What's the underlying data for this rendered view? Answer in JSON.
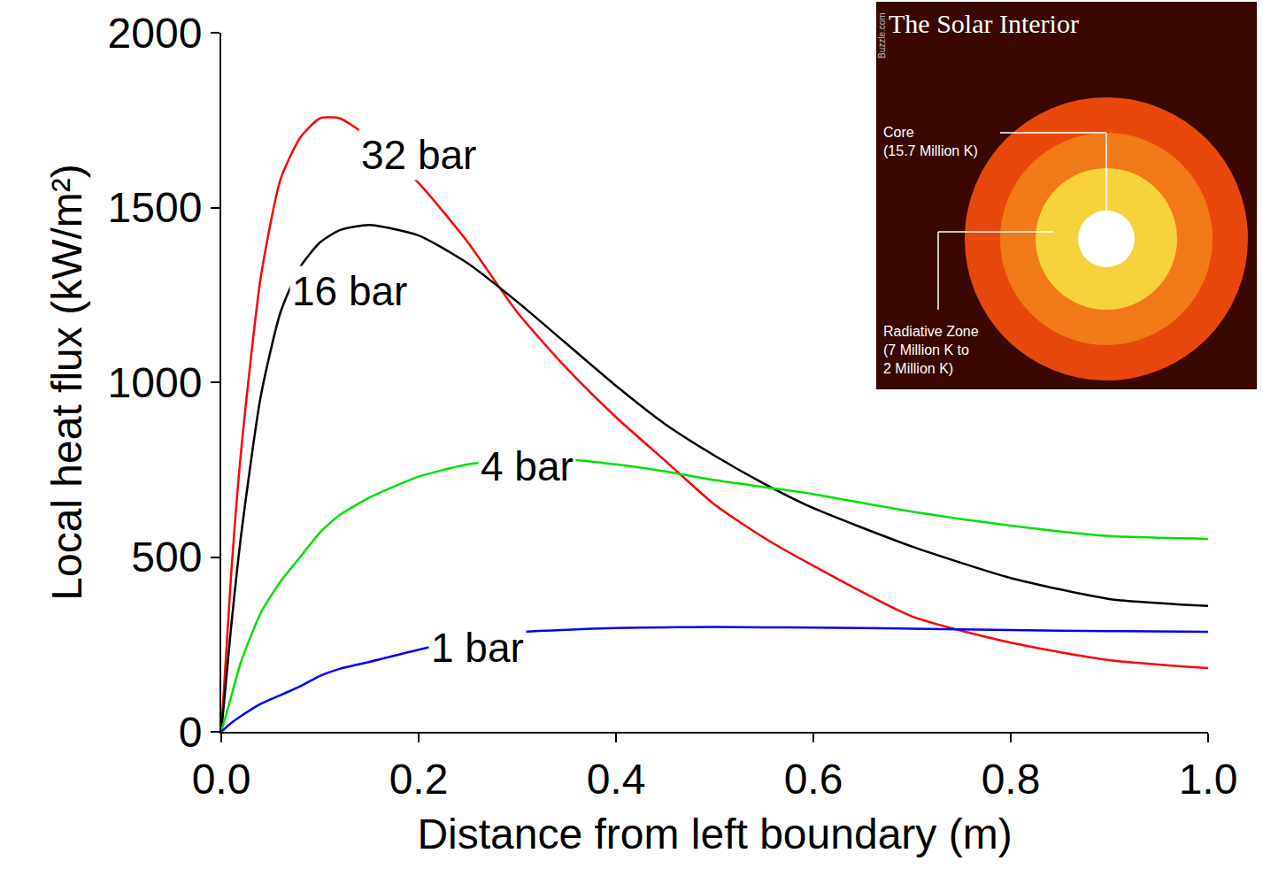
{
  "chart_data": {
    "type": "line",
    "x_label": "Distance from left boundary (m)",
    "y_label": "Local heat flux (kW/m²)",
    "x": [
      0,
      0.01,
      0.02,
      0.04,
      0.06,
      0.08,
      0.1,
      0.12,
      0.15,
      0.2,
      0.25,
      0.3,
      0.35,
      0.4,
      0.45,
      0.5,
      0.55,
      0.6,
      0.7,
      0.8,
      0.9,
      1.0
    ],
    "series": [
      {
        "name": "32 bar",
        "color": "#ff0000",
        "values": [
          0,
          450,
          800,
          1300,
          1580,
          1700,
          1755,
          1755,
          1700,
          1570,
          1400,
          1200,
          1040,
          900,
          775,
          650,
          555,
          475,
          330,
          255,
          205,
          182
        ]
      },
      {
        "name": "16 bar",
        "color": "#000000",
        "values": [
          0,
          300,
          560,
          960,
          1200,
          1330,
          1400,
          1435,
          1450,
          1420,
          1340,
          1230,
          1110,
          990,
          880,
          790,
          710,
          640,
          530,
          440,
          380,
          360
        ]
      },
      {
        "name": "4 bar",
        "color": "#00e000",
        "values": [
          0,
          100,
          200,
          340,
          430,
          500,
          570,
          620,
          670,
          730,
          765,
          780,
          780,
          765,
          745,
          720,
          700,
          680,
          630,
          590,
          560,
          552
        ]
      },
      {
        "name": "1 bar",
        "color": "#0000ff",
        "values": [
          0,
          25,
          45,
          80,
          105,
          130,
          160,
          180,
          200,
          235,
          265,
          285,
          292,
          297,
          299,
          300,
          299,
          298,
          295,
          291,
          288,
          286
        ]
      }
    ],
    "xlim": [
      0,
      1.0
    ],
    "xticks": [
      {
        "value": 0,
        "label": "0.0"
      },
      0.2,
      0.4,
      0.6,
      0.8,
      {
        "value": 1.0,
        "label": "1.0"
      }
    ],
    "ylim": [
      0,
      2000
    ],
    "yticks": [
      0,
      500,
      1000,
      1500,
      2000
    ],
    "grid": false,
    "inset": {
      "title": "The Solar Interior",
      "source": "Buzzle.com",
      "labels": [
        [
          "Core",
          "(15.7 Million K)"
        ],
        [
          "Radiative Zone",
          "(7 Million K to",
          "2 Million K)"
        ]
      ]
    }
  }
}
